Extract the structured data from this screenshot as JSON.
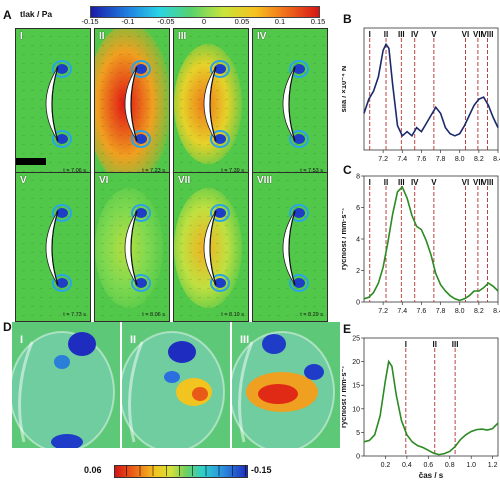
{
  "panels": {
    "A": "A",
    "B": "B",
    "C": "C",
    "D": "D",
    "E": "E"
  },
  "pressure_bar": {
    "label": "tlak / Pa",
    "ticks": [
      "-0.15",
      "-0.1",
      "-0.05",
      "0",
      "0.05",
      "0.1",
      "0.15"
    ]
  },
  "tiles": [
    {
      "roman": "I",
      "time": "t = 7.06 s",
      "field": "neutral"
    },
    {
      "roman": "II",
      "time": "t = 7.23 s",
      "field": "strong-high"
    },
    {
      "roman": "III",
      "time": "t = 7.39 s",
      "field": "high"
    },
    {
      "roman": "IV",
      "time": "t = 7.53 s",
      "field": "neutral"
    },
    {
      "roman": "V",
      "time": "t = 7.73 s",
      "field": "neutral"
    },
    {
      "roman": "VI",
      "time": "t = 8.06 s",
      "field": "low-high"
    },
    {
      "roman": "VII",
      "time": "t = 8.19 s",
      "field": "mid-high"
    },
    {
      "roman": "VIII",
      "time": "t = 8.29 s",
      "field": "neutral"
    }
  ],
  "d_tiles": [
    {
      "roman": "I"
    },
    {
      "roman": "II"
    },
    {
      "roman": "III"
    }
  ],
  "d_bar": {
    "min": "0.06",
    "max": "-0.15"
  },
  "colors": {
    "line_blue": "#1b2a6b",
    "line_green": "#2c8a22",
    "marker": "#b0302e"
  },
  "chart_data": [
    {
      "id": "B",
      "type": "line",
      "ylabel": "síla / ×10⁻⁴ N",
      "xlim": [
        7.0,
        8.4
      ],
      "xticks": [
        "7.2",
        "7.4",
        "7.6",
        "7.8",
        "8.0",
        "8.2",
        "8.4"
      ],
      "markers": [
        {
          "label": "I",
          "x": 7.06
        },
        {
          "label": "II",
          "x": 7.23
        },
        {
          "label": "III",
          "x": 7.39
        },
        {
          "label": "IV",
          "x": 7.53
        },
        {
          "label": "V",
          "x": 7.73
        },
        {
          "label": "VI",
          "x": 8.06
        },
        {
          "label": "VII",
          "x": 8.19
        },
        {
          "label": "VIII",
          "x": 8.29
        }
      ],
      "series": [
        {
          "x": [
            7.0,
            7.05,
            7.1,
            7.15,
            7.2,
            7.23,
            7.26,
            7.3,
            7.35,
            7.4,
            7.45,
            7.5,
            7.55,
            7.6,
            7.65,
            7.7,
            7.75,
            7.8,
            7.85,
            7.9,
            7.95,
            8.0,
            8.05,
            8.1,
            8.15,
            8.2,
            8.25,
            8.3,
            8.35,
            8.4
          ],
          "y": [
            -0.2,
            0.5,
            0.9,
            1.6,
            2.9,
            3.2,
            3.0,
            1.2,
            -0.8,
            -1.3,
            -1.1,
            -1.3,
            -0.9,
            -1.1,
            -0.7,
            -0.3,
            0.1,
            -0.2,
            -0.9,
            -1.2,
            -1.3,
            -1.2,
            -0.8,
            -0.3,
            0.2,
            0.5,
            0.6,
            0.2,
            -0.4,
            -0.9
          ]
        }
      ]
    },
    {
      "id": "C",
      "type": "line",
      "ylabel": "rychlost / mm·s⁻¹",
      "xlim": [
        7.0,
        8.4
      ],
      "ylim": [
        0,
        8
      ],
      "xticks": [
        "7.2",
        "7.4",
        "7.6",
        "7.8",
        "8.0",
        "8.2",
        "8.4"
      ],
      "yticks": [
        "0",
        "2",
        "4",
        "6",
        "8"
      ],
      "markers": [
        {
          "label": "I",
          "x": 7.06
        },
        {
          "label": "II",
          "x": 7.23
        },
        {
          "label": "III",
          "x": 7.39
        },
        {
          "label": "IV",
          "x": 7.53
        },
        {
          "label": "V",
          "x": 7.73
        },
        {
          "label": "VI",
          "x": 8.06
        },
        {
          "label": "VII",
          "x": 8.19
        },
        {
          "label": "VIII",
          "x": 8.29
        }
      ],
      "series": [
        {
          "x": [
            7.0,
            7.05,
            7.1,
            7.15,
            7.2,
            7.25,
            7.3,
            7.35,
            7.4,
            7.45,
            7.5,
            7.55,
            7.6,
            7.65,
            7.7,
            7.75,
            7.8,
            7.85,
            7.9,
            7.95,
            8.0,
            8.05,
            8.1,
            8.15,
            8.2,
            8.25,
            8.3,
            8.35,
            8.4
          ],
          "y": [
            0.2,
            0.3,
            0.6,
            1.2,
            2.2,
            3.8,
            5.6,
            7.0,
            7.3,
            6.6,
            5.5,
            4.8,
            4.6,
            3.9,
            3.0,
            1.8,
            1.1,
            0.7,
            0.4,
            0.2,
            0.1,
            0.2,
            0.4,
            0.7,
            0.7,
            0.9,
            1.2,
            1.0,
            0.7
          ]
        }
      ]
    },
    {
      "id": "E",
      "type": "line",
      "ylabel": "rychlost / mm·s⁻¹",
      "xlabel": "čas / s",
      "xlim": [
        0.0,
        1.25
      ],
      "ylim": [
        0,
        25
      ],
      "xticks": [
        "0.2",
        "0.4",
        "0.6",
        "0.8",
        "1.0",
        "1.2"
      ],
      "yticks": [
        "0",
        "5",
        "10",
        "15",
        "20",
        "25"
      ],
      "markers": [
        {
          "label": "I",
          "x": 0.39
        },
        {
          "label": "II",
          "x": 0.66
        },
        {
          "label": "III",
          "x": 0.85
        }
      ],
      "series": [
        {
          "x": [
            0.0,
            0.05,
            0.1,
            0.15,
            0.2,
            0.23,
            0.26,
            0.3,
            0.35,
            0.4,
            0.45,
            0.5,
            0.55,
            0.6,
            0.65,
            0.7,
            0.75,
            0.8,
            0.85,
            0.9,
            0.95,
            1.0,
            1.05,
            1.1,
            1.15,
            1.2,
            1.25
          ],
          "y": [
            3.0,
            3.3,
            4.5,
            8.5,
            16.0,
            20.0,
            19.0,
            13.0,
            7.5,
            4.5,
            3.0,
            2.2,
            1.8,
            1.2,
            0.6,
            0.3,
            0.5,
            1.0,
            2.0,
            3.5,
            4.5,
            5.2,
            5.6,
            5.7,
            5.5,
            5.8,
            7.0
          ]
        }
      ]
    }
  ]
}
